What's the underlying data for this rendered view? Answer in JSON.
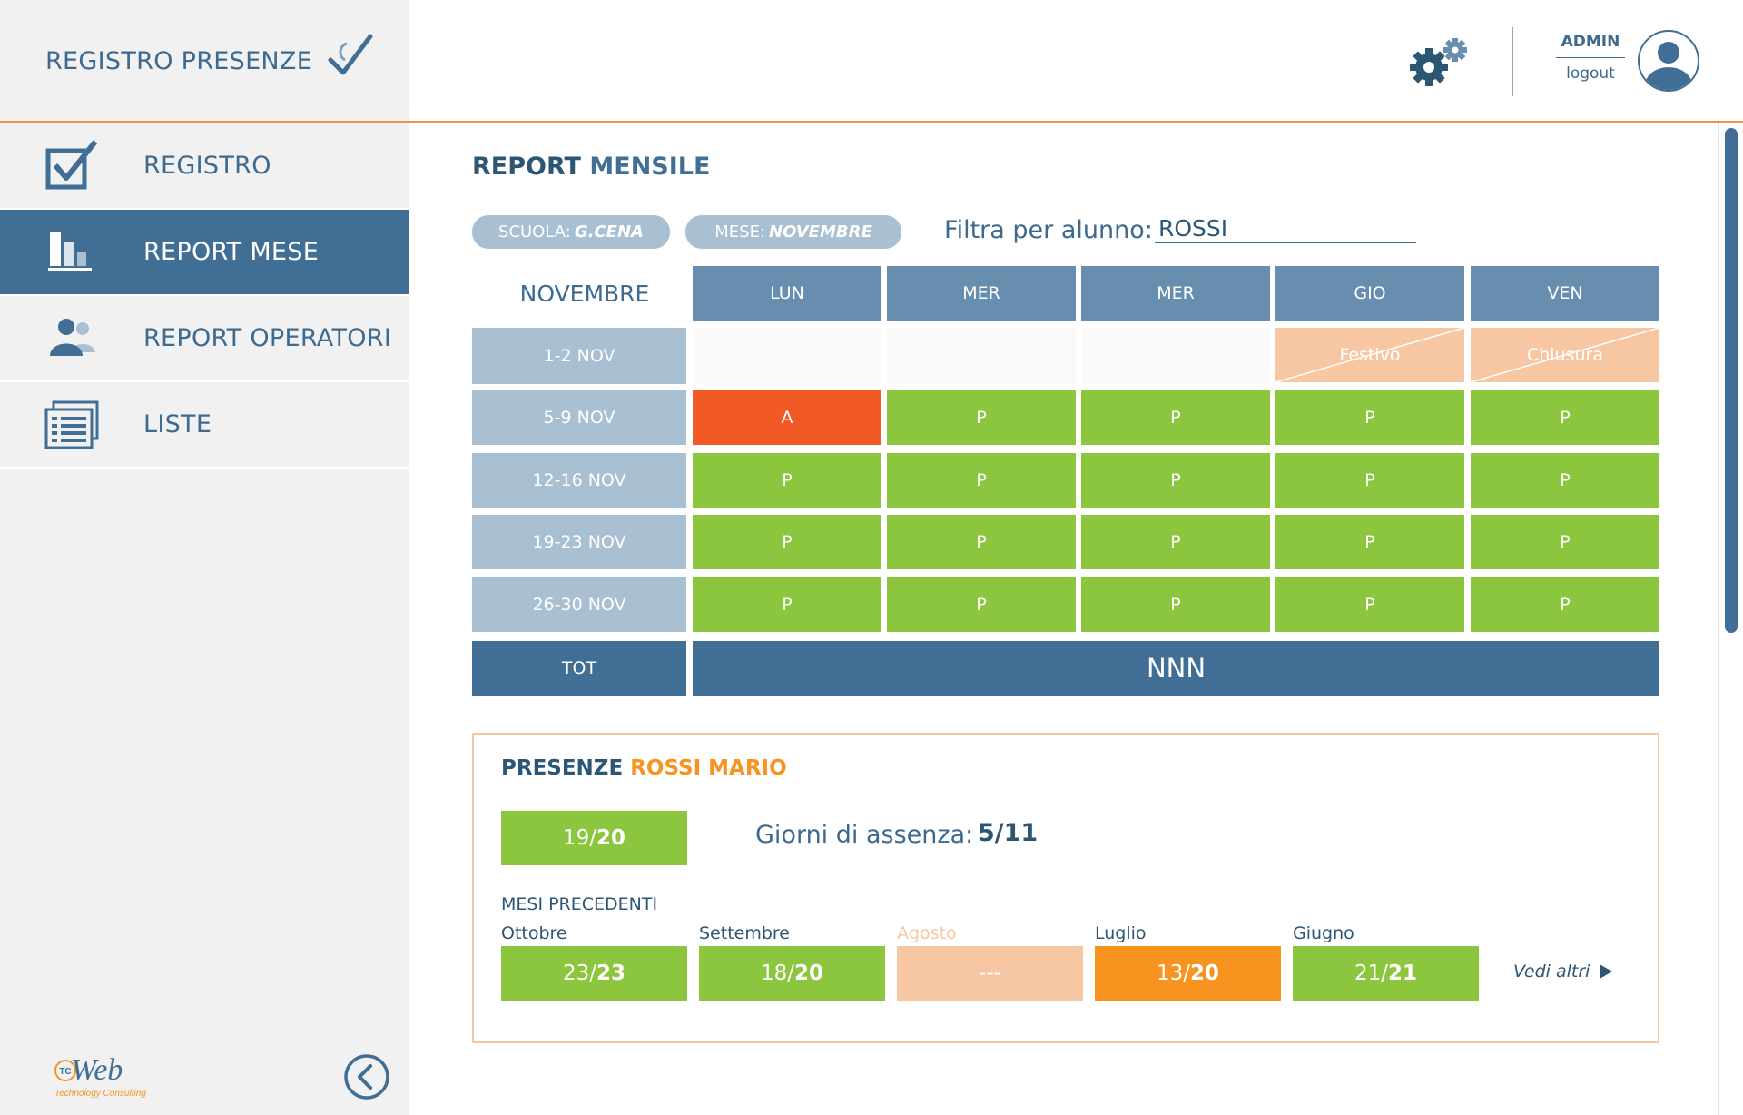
{
  "app": {
    "title": "REGISTRO PRESENZE",
    "logo_text": "Web",
    "logo_badge": "TC",
    "logo_subtitle": "Technology Consulting"
  },
  "sidebar": {
    "items": [
      {
        "label": "REGISTRO",
        "icon": "checkbox-icon",
        "active": false
      },
      {
        "label": "REPORT MESE",
        "icon": "bar-chart-icon",
        "active": true
      },
      {
        "label": "REPORT OPERATORI",
        "icon": "users-icon",
        "active": false
      },
      {
        "label": "LISTE",
        "icon": "list-icon",
        "active": false
      }
    ]
  },
  "header": {
    "user": "ADMIN",
    "logout": "logout"
  },
  "report": {
    "title_prefix": "REPORT",
    "title_accent": "MENSILE",
    "school_label": "SCUOLA:",
    "school_value": "G.CENA",
    "month_label": "MESE:",
    "month_value": "NOVEMBRE",
    "filter_label": "Filtra per alunno:",
    "filter_value": "ROSSI",
    "grid_month": "NOVEMBRE",
    "days": [
      "LUN",
      "MER",
      "MER",
      "GIO",
      "VEN"
    ],
    "weeks": [
      {
        "label": "1-2 NOV",
        "cells": [
          {
            "type": "empty",
            "text": ""
          },
          {
            "type": "empty",
            "text": ""
          },
          {
            "type": "empty",
            "text": ""
          },
          {
            "type": "holiday",
            "text": "Festivo"
          },
          {
            "type": "holiday",
            "text": "Chiusura"
          }
        ]
      },
      {
        "label": "5-9 NOV",
        "cells": [
          {
            "type": "absent",
            "text": "A"
          },
          {
            "type": "present",
            "text": "P"
          },
          {
            "type": "present",
            "text": "P"
          },
          {
            "type": "present",
            "text": "P"
          },
          {
            "type": "present",
            "text": "P"
          }
        ]
      },
      {
        "label": "12-16 NOV",
        "cells": [
          {
            "type": "present",
            "text": "P"
          },
          {
            "type": "present",
            "text": "P"
          },
          {
            "type": "present",
            "text": "P"
          },
          {
            "type": "present",
            "text": "P"
          },
          {
            "type": "present",
            "text": "P"
          }
        ]
      },
      {
        "label": "19-23 NOV",
        "cells": [
          {
            "type": "present",
            "text": "P"
          },
          {
            "type": "present",
            "text": "P"
          },
          {
            "type": "present",
            "text": "P"
          },
          {
            "type": "present",
            "text": "P"
          },
          {
            "type": "present",
            "text": "P"
          }
        ]
      },
      {
        "label": "26-30 NOV",
        "cells": [
          {
            "type": "present",
            "text": "P"
          },
          {
            "type": "present",
            "text": "P"
          },
          {
            "type": "present",
            "text": "P"
          },
          {
            "type": "present",
            "text": "P"
          },
          {
            "type": "present",
            "text": "P"
          }
        ]
      }
    ],
    "total_label": "TOT",
    "total_value": "NNN"
  },
  "presence": {
    "title_prefix": "PRESENZE",
    "student": "ROSSI MARIO",
    "current_num": "19",
    "current_den": "20",
    "absence_label": "Giorni di assenza:",
    "absence_value": "5/11",
    "previous_title": "MESI PRECEDENTI",
    "previous": [
      {
        "month": "Ottobre",
        "num": "23",
        "den": "23",
        "status": "green"
      },
      {
        "month": "Settembre",
        "num": "18",
        "den": "20",
        "status": "green"
      },
      {
        "month": "Agosto",
        "num": "---",
        "den": "",
        "status": "peach"
      },
      {
        "month": "Luglio",
        "num": "13",
        "den": "20",
        "status": "orange"
      },
      {
        "month": "Giugno",
        "num": "21",
        "den": "21",
        "status": "green"
      }
    ],
    "more_label": "Vedi altri"
  },
  "colors": {
    "primary": "#416e94",
    "accent": "#f1924a",
    "present": "#8cc63f",
    "absent": "#f15a24",
    "holiday": "#f7c7a4",
    "header_cell": "#688eaf",
    "week_cell": "#a9bfd2"
  }
}
